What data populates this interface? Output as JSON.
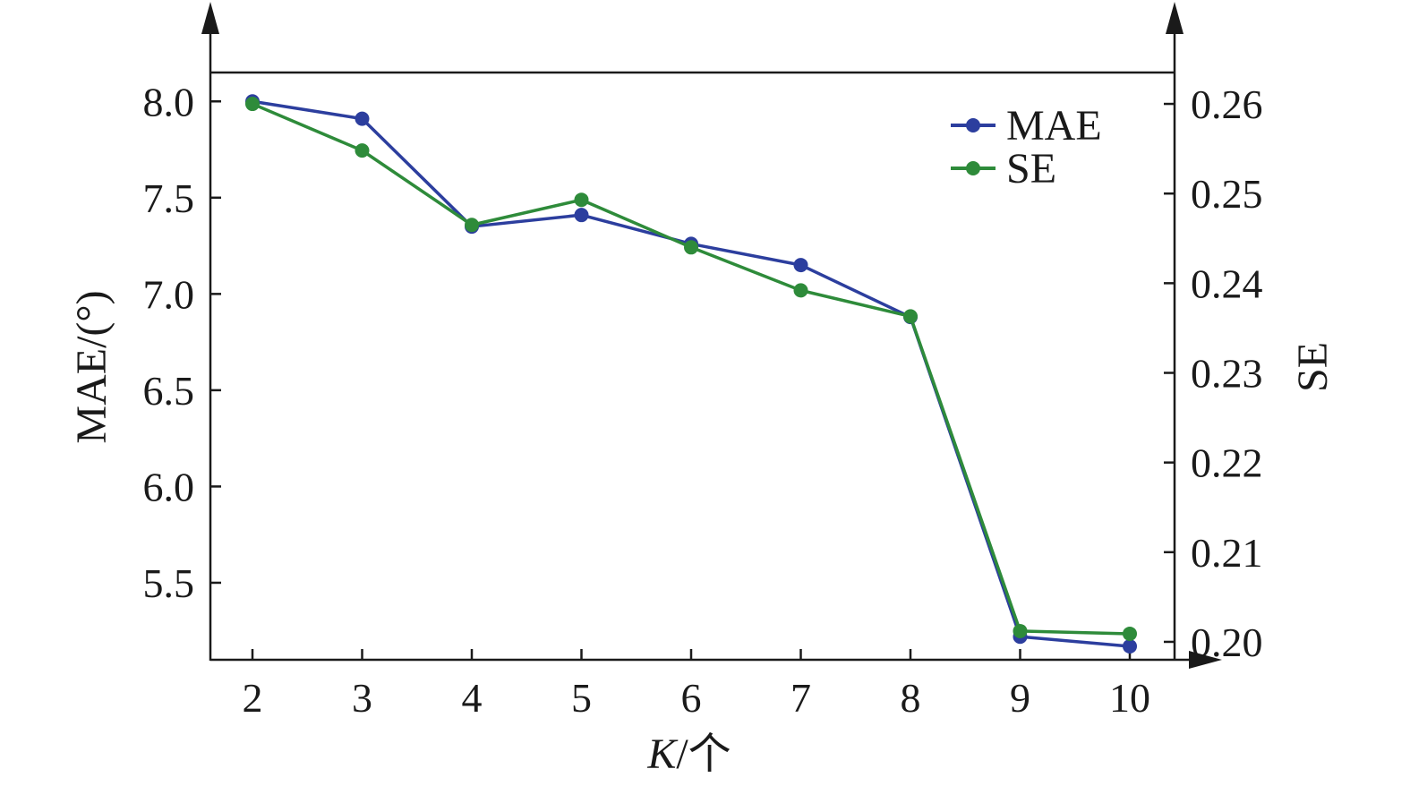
{
  "chart_data": {
    "type": "line",
    "x": [
      2,
      3,
      4,
      5,
      6,
      7,
      8,
      9,
      10
    ],
    "x_tick_labels": [
      "2",
      "3",
      "4",
      "5",
      "6",
      "7",
      "8",
      "9",
      "10"
    ],
    "xlabel_italic": "K",
    "xlabel_rest": "/个",
    "ylabel_left": "MAE/(°)",
    "ylabel_right": "SE",
    "ylim_left": [
      5.1,
      8.15
    ],
    "ylim_right": [
      0.198,
      0.2635
    ],
    "y_left_ticks": [
      8.0,
      7.5,
      7.0,
      6.5,
      6.0,
      5.5
    ],
    "y_left_tick_labels": [
      "8.0",
      "7.5",
      "7.0",
      "6.5",
      "6.0",
      "5.5"
    ],
    "y_right_ticks": [
      0.26,
      0.25,
      0.24,
      0.23,
      0.22,
      0.21,
      0.2
    ],
    "y_right_tick_labels": [
      "0.26",
      "0.25",
      "0.24",
      "0.23",
      "0.22",
      "0.21",
      "0.20"
    ],
    "grid": false,
    "legend_position": "top-right",
    "series": [
      {
        "name": "MAE",
        "axis": "left",
        "color": "#2c3e9e",
        "values": [
          8.0,
          7.91,
          7.35,
          7.41,
          7.26,
          7.15,
          6.88,
          5.22,
          5.17
        ]
      },
      {
        "name": "SE",
        "axis": "right",
        "color": "#2e8b3a",
        "values": [
          0.26,
          0.2548,
          0.2465,
          0.2493,
          0.244,
          0.2392,
          0.2363,
          0.2012,
          0.2009
        ]
      }
    ]
  }
}
